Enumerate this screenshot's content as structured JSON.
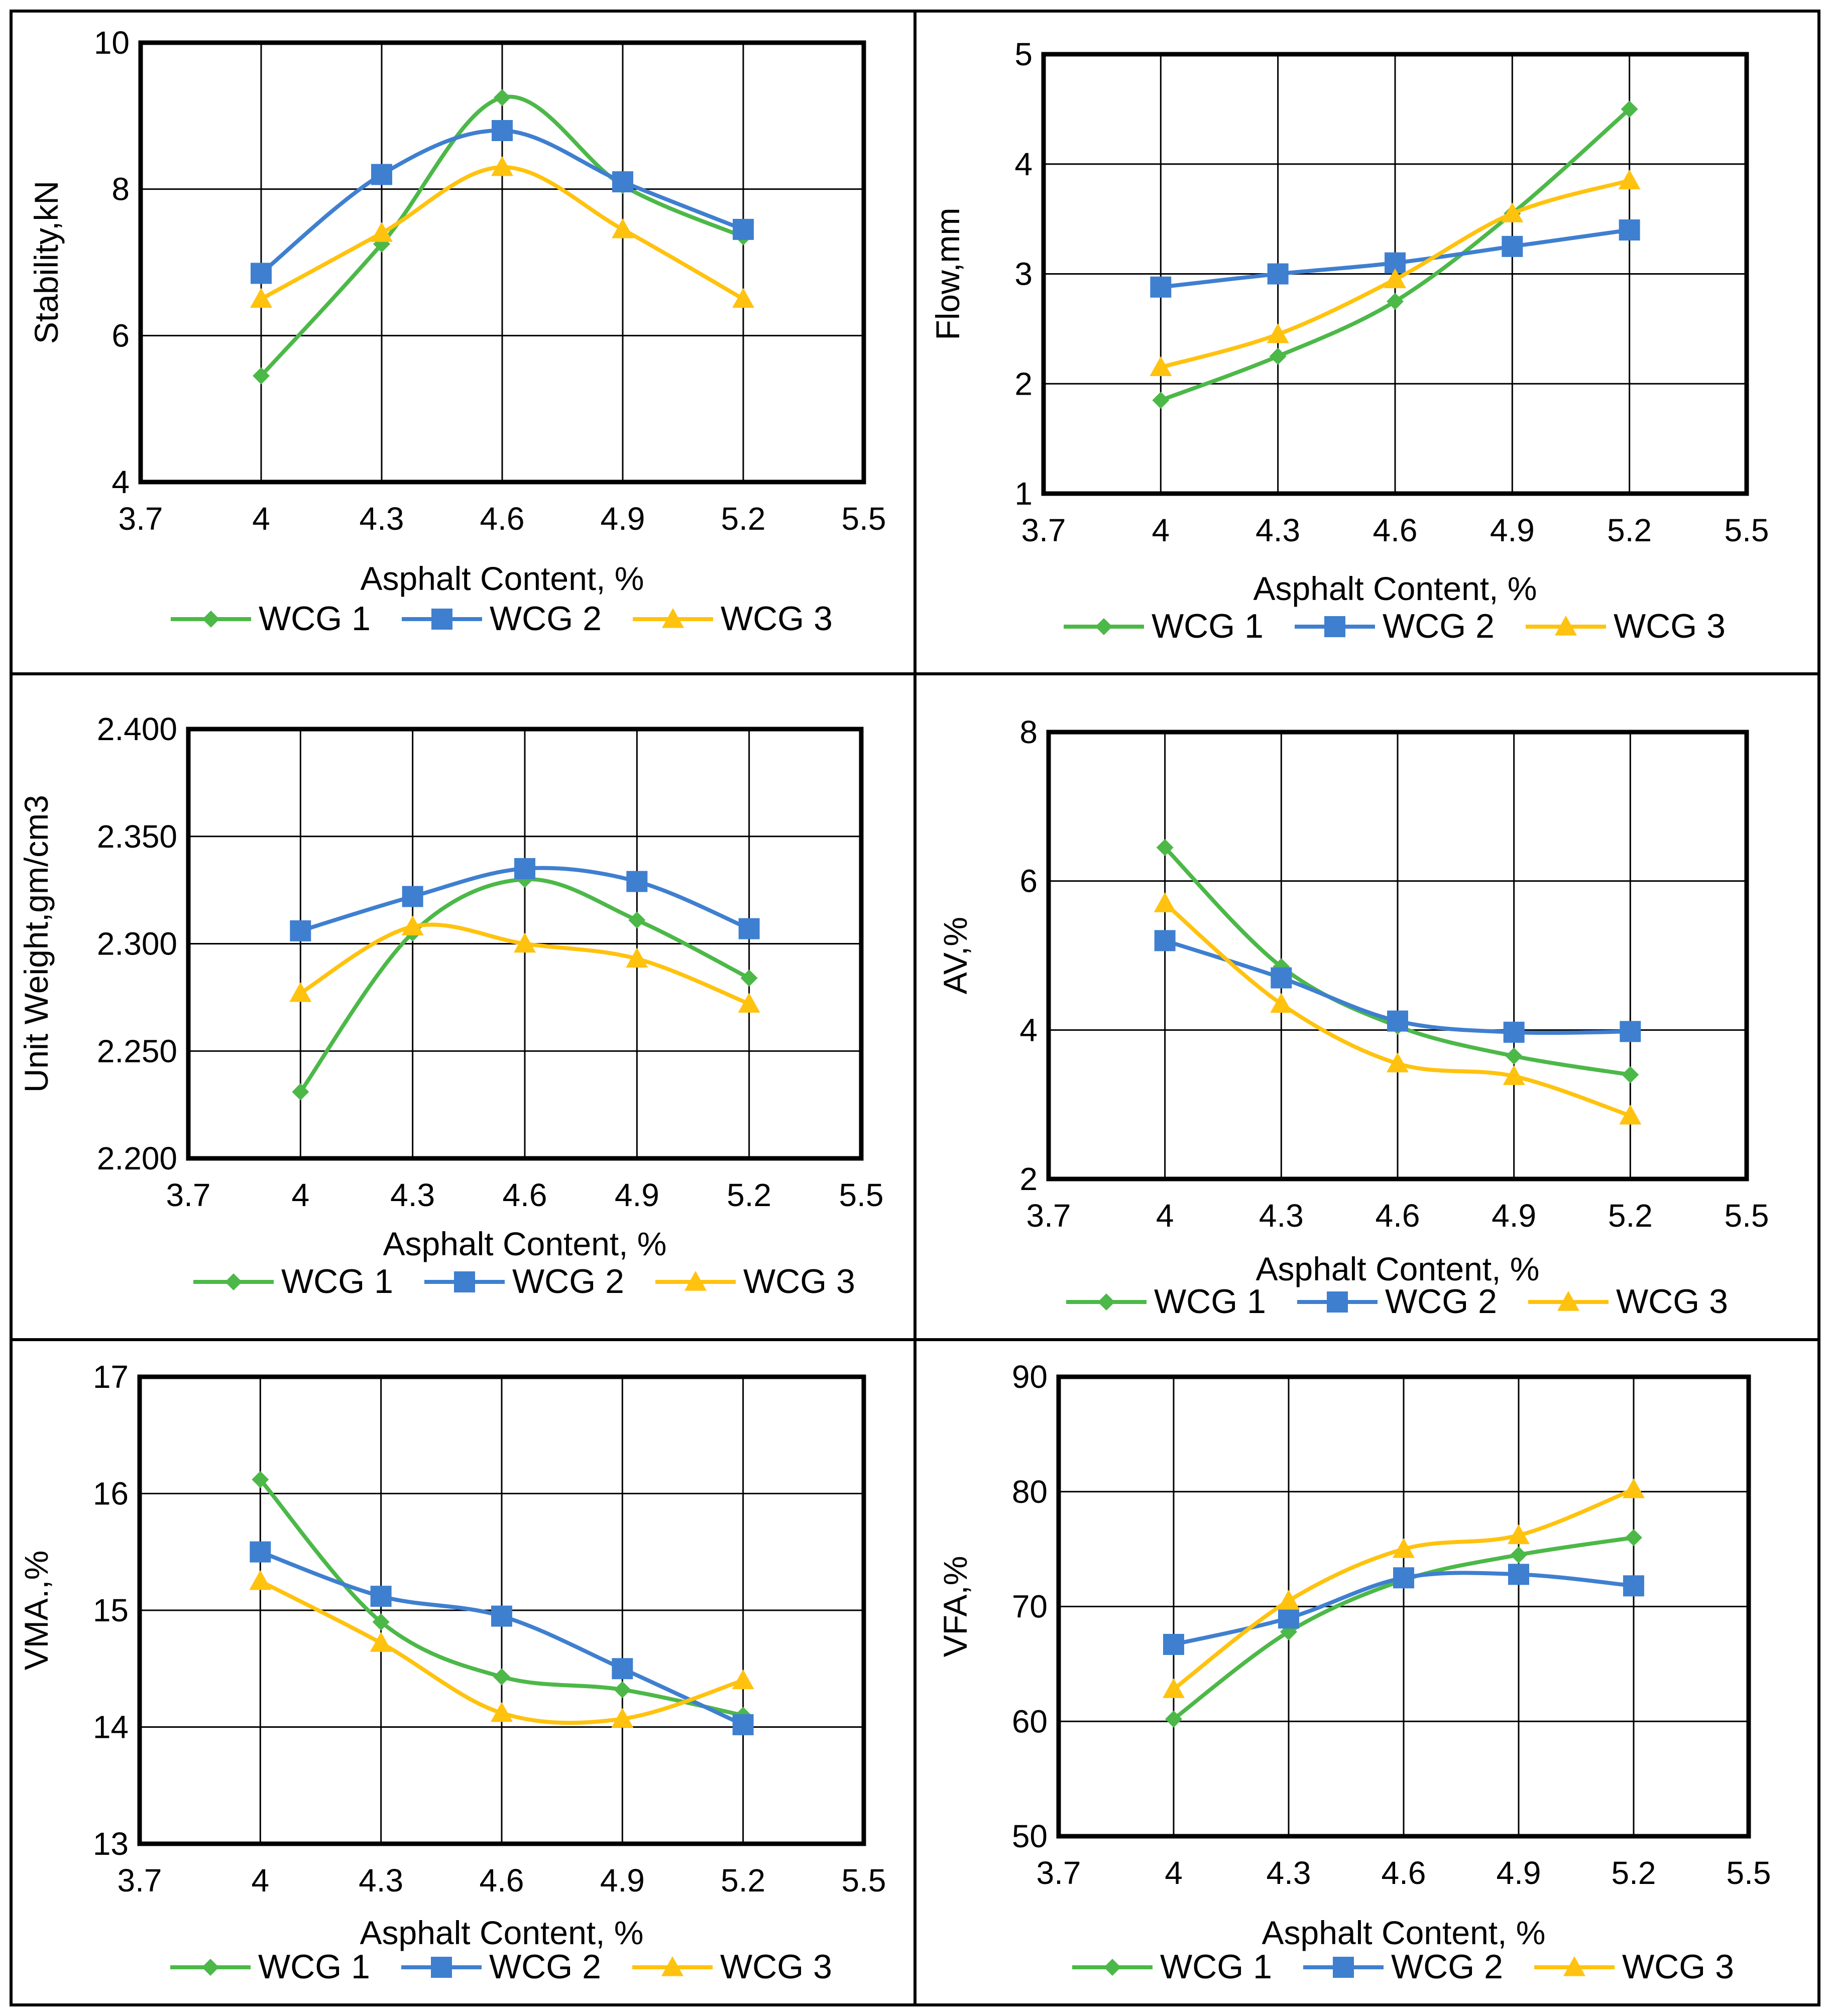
{
  "colors": {
    "WCG 1": "#4cb848",
    "WCG 2": "#3f7fd0",
    "WCG 3": "#ffc20e",
    "axis": "#000000",
    "grid": "#000000"
  },
  "chart_data": [
    {
      "type": "line",
      "ylabel": "Stability,kN",
      "xlabel": "Asphalt Content, %",
      "x": [
        4,
        4.3,
        4.6,
        4.9,
        5.2
      ],
      "xlim": [
        3.7,
        5.5
      ],
      "xticks": [
        "3.7",
        "4",
        "4.3",
        "4.6",
        "4.9",
        "5.2",
        "5.5"
      ],
      "ylim": [
        4,
        10
      ],
      "yticks": [
        "4",
        "6",
        "8",
        "10"
      ],
      "grid": true,
      "legend": "bottom",
      "series": [
        {
          "name": "WCG 1",
          "values": [
            5.45,
            7.25,
            9.25,
            8.05,
            7.35
          ],
          "marker": "diamond"
        },
        {
          "name": "WCG 2",
          "values": [
            6.85,
            8.2,
            8.8,
            8.1,
            7.45
          ],
          "marker": "square"
        },
        {
          "name": "WCG 3",
          "values": [
            6.5,
            7.4,
            8.3,
            7.45,
            6.5
          ],
          "marker": "triangle"
        }
      ]
    },
    {
      "type": "line",
      "ylabel": "Flow,mm",
      "xlabel": "Asphalt Content, %",
      "x": [
        4,
        4.3,
        4.6,
        4.9,
        5.2
      ],
      "xlim": [
        3.7,
        5.5
      ],
      "xticks": [
        "3.7",
        "4",
        "4.3",
        "4.6",
        "4.9",
        "5.2",
        "5.5"
      ],
      "ylim": [
        1,
        5
      ],
      "yticks": [
        "1",
        "2",
        "3",
        "4",
        "5"
      ],
      "grid": true,
      "legend": "bottom",
      "series": [
        {
          "name": "WCG 1",
          "values": [
            1.85,
            2.25,
            2.75,
            3.55,
            4.5
          ],
          "marker": "diamond"
        },
        {
          "name": "WCG 2",
          "values": [
            2.88,
            3.0,
            3.1,
            3.25,
            3.4
          ],
          "marker": "square"
        },
        {
          "name": "WCG 3",
          "values": [
            2.15,
            2.45,
            2.95,
            3.55,
            3.85
          ],
          "marker": "triangle"
        }
      ]
    },
    {
      "type": "line",
      "ylabel": "Unit Weight,gm/cm3",
      "xlabel": "Asphalt Content, %",
      "x": [
        4,
        4.3,
        4.6,
        4.9,
        5.2
      ],
      "xlim": [
        3.7,
        5.5
      ],
      "xticks": [
        "3.7",
        "4",
        "4.3",
        "4.6",
        "4.9",
        "5.2",
        "5.5"
      ],
      "ylim": [
        2.2,
        2.4
      ],
      "yticks": [
        "2.200",
        "2.250",
        "2.300",
        "2.350",
        "2.400"
      ],
      "grid": true,
      "legend": "bottom",
      "series": [
        {
          "name": "WCG 1",
          "values": [
            2.231,
            2.305,
            2.33,
            2.311,
            2.284
          ],
          "marker": "diamond"
        },
        {
          "name": "WCG 2",
          "values": [
            2.306,
            2.322,
            2.335,
            2.329,
            2.307
          ],
          "marker": "square"
        },
        {
          "name": "WCG 3",
          "values": [
            2.277,
            2.308,
            2.3,
            2.293,
            2.272
          ],
          "marker": "triangle"
        }
      ]
    },
    {
      "type": "line",
      "ylabel": "AV,%",
      "xlabel": "Asphalt Content, %",
      "x": [
        4,
        4.3,
        4.6,
        4.9,
        5.2
      ],
      "xlim": [
        3.7,
        5.5
      ],
      "xticks": [
        "3.7",
        "4",
        "4.3",
        "4.6",
        "4.9",
        "5.2",
        "5.5"
      ],
      "ylim": [
        2,
        8
      ],
      "yticks": [
        "2",
        "4",
        "6",
        "8"
      ],
      "grid": true,
      "legend": "bottom",
      "series": [
        {
          "name": "WCG 1",
          "values": [
            6.45,
            4.85,
            4.05,
            3.65,
            3.4
          ],
          "marker": "diamond"
        },
        {
          "name": "WCG 2",
          "values": [
            5.2,
            4.7,
            4.12,
            3.97,
            3.98
          ],
          "marker": "square"
        },
        {
          "name": "WCG 3",
          "values": [
            5.7,
            4.35,
            3.55,
            3.38,
            2.85
          ],
          "marker": "triangle"
        }
      ]
    },
    {
      "type": "line",
      "ylabel": "VMA.,%",
      "xlabel": "Asphalt Content, %",
      "x": [
        4,
        4.3,
        4.6,
        4.9,
        5.2
      ],
      "xlim": [
        3.7,
        5.5
      ],
      "xticks": [
        "3.7",
        "4",
        "4.3",
        "4.6",
        "4.9",
        "5.2",
        "5.5"
      ],
      "ylim": [
        13,
        17
      ],
      "yticks": [
        "13",
        "14",
        "15",
        "16",
        "17"
      ],
      "grid": true,
      "legend": "bottom",
      "series": [
        {
          "name": "WCG 1",
          "values": [
            16.12,
            14.9,
            14.43,
            14.32,
            14.1
          ],
          "marker": "diamond"
        },
        {
          "name": "WCG 2",
          "values": [
            15.5,
            15.12,
            14.95,
            14.5,
            14.02
          ],
          "marker": "square"
        },
        {
          "name": "WCG 3",
          "values": [
            15.25,
            14.72,
            14.12,
            14.07,
            14.4
          ],
          "marker": "triangle"
        }
      ]
    },
    {
      "type": "line",
      "ylabel": "VFA,%",
      "xlabel": "Asphalt Content, %",
      "x": [
        4,
        4.3,
        4.6,
        4.9,
        5.2
      ],
      "xlim": [
        3.7,
        5.5
      ],
      "xticks": [
        "3.7",
        "4",
        "4.3",
        "4.6",
        "4.9",
        "5.2",
        "5.5"
      ],
      "ylim": [
        50,
        90
      ],
      "yticks": [
        "50",
        "60",
        "70",
        "80",
        "90"
      ],
      "grid": true,
      "legend": "bottom",
      "series": [
        {
          "name": "WCG 1",
          "values": [
            60.2,
            67.8,
            72.3,
            74.5,
            76.0
          ],
          "marker": "diamond"
        },
        {
          "name": "WCG 2",
          "values": [
            66.7,
            69.0,
            72.5,
            72.8,
            71.8
          ],
          "marker": "square"
        },
        {
          "name": "WCG 3",
          "values": [
            62.8,
            70.5,
            75.0,
            76.2,
            80.2
          ],
          "marker": "triangle"
        }
      ]
    }
  ]
}
